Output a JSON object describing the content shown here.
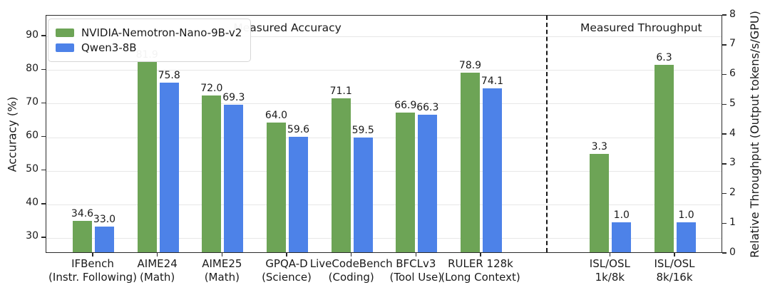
{
  "chart_data": {
    "type": "bar",
    "section_titles": {
      "accuracy": "Measured Accuracy",
      "throughput": "Measured Throughput"
    },
    "series": [
      {
        "name": "NVIDIA-Nemotron-Nano-9B-v2",
        "color": "#6da456"
      },
      {
        "name": "Qwen3-8B",
        "color": "#4d82e8"
      }
    ],
    "left_axis": {
      "label": "Accuracy (%)",
      "ticks": [
        30,
        40,
        50,
        60,
        70,
        80,
        90
      ],
      "ylim": [
        25.3,
        96.2
      ]
    },
    "right_axis": {
      "label": "Relative Throughput (Output tokens/s/GPU)",
      "ticks": [
        0,
        1,
        2,
        3,
        4,
        5,
        6,
        7,
        8
      ],
      "ylim": [
        0,
        8
      ]
    },
    "groups": [
      {
        "slot": 0,
        "label": "IFBench",
        "sublabel": "(Instr. Following)",
        "axis": "left",
        "values": [
          34.6,
          33.0
        ]
      },
      {
        "slot": 1,
        "label": "AIME24",
        "sublabel": "(Math)",
        "axis": "left",
        "values": [
          81.9,
          75.8
        ]
      },
      {
        "slot": 2,
        "label": "AIME25",
        "sublabel": "(Math)",
        "axis": "left",
        "values": [
          72.0,
          69.3
        ]
      },
      {
        "slot": 3,
        "label": "GPQA-D",
        "sublabel": "(Science)",
        "axis": "left",
        "values": [
          64.0,
          59.6
        ]
      },
      {
        "slot": 4,
        "label": "LiveCodeBench",
        "sublabel": "(Coding)",
        "axis": "left",
        "values": [
          71.1,
          59.5
        ]
      },
      {
        "slot": 5,
        "label": "BFCLv3",
        "sublabel": "(Tool Use)",
        "axis": "left",
        "values": [
          66.9,
          66.3
        ]
      },
      {
        "slot": 6,
        "label": "RULER 128k",
        "sublabel": "(Long Context)",
        "axis": "left",
        "values": [
          78.9,
          74.1
        ]
      },
      {
        "slot": 8,
        "label": "ISL/OSL",
        "sublabel": "1k/8k",
        "axis": "right",
        "values": [
          3.3,
          1.0
        ]
      },
      {
        "slot": 9,
        "label": "ISL/OSL",
        "sublabel": "8k/16k",
        "axis": "right",
        "values": [
          6.3,
          1.0
        ]
      }
    ],
    "divider_slot": 7,
    "total_slots": 10,
    "grid": true,
    "legend_position": "upper left",
    "value_label_decimals": 1
  }
}
